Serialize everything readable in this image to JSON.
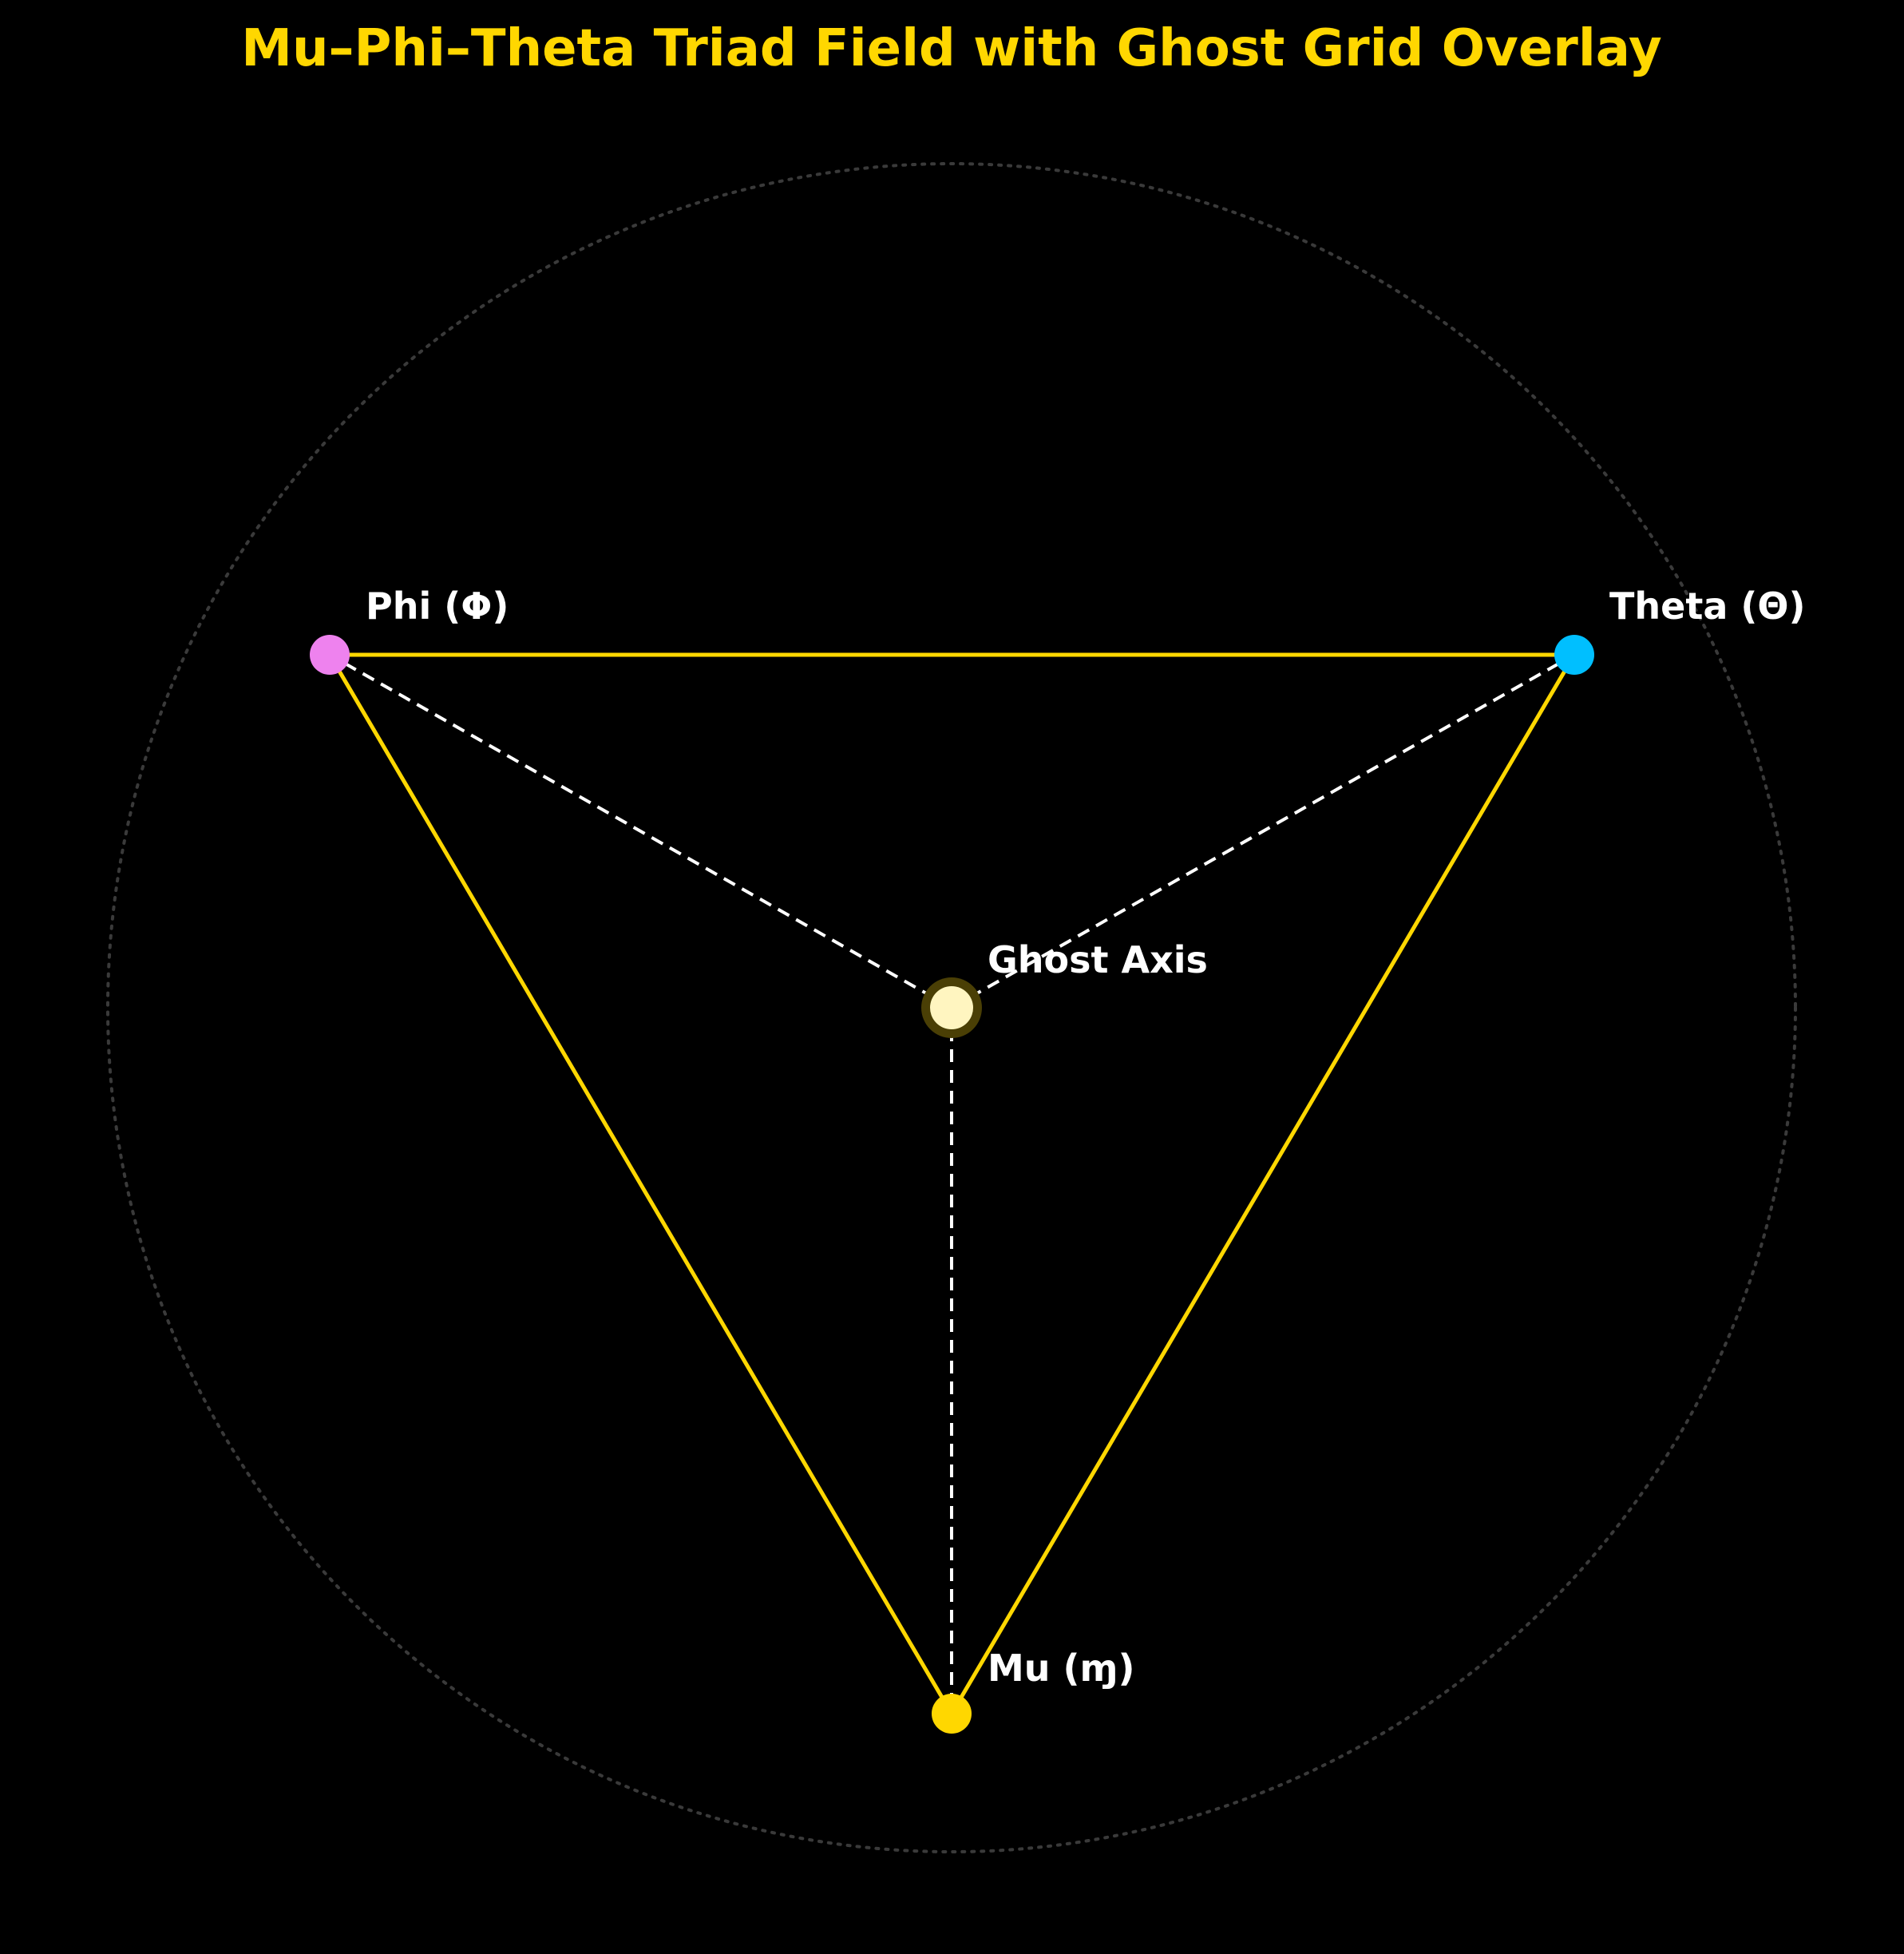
{
  "title": "Mu–Phi–Theta Triad Field with Ghost Grid Overlay",
  "colors": {
    "background": "#000000",
    "title": "#FFD700",
    "triangle_edge": "#FFD700",
    "spoke": "#FFFFFF",
    "guide_circle": "#3a3a3a",
    "label": "#FFFFFF",
    "center_halo": "#4a3f05"
  },
  "nodes": [
    {
      "id": "phi",
      "label": "Phi (Φ)",
      "color": "#EE82EE"
    },
    {
      "id": "theta",
      "label": "Theta (Θ)",
      "color": "#00BFFF"
    },
    {
      "id": "mu",
      "label": "Mu (ɱ)",
      "color": "#FFD700"
    },
    {
      "id": "ghost",
      "label": "Ghost Axis",
      "color": "#FFF5C0"
    }
  ],
  "edges": [
    {
      "from": "phi",
      "to": "theta",
      "style": "solid"
    },
    {
      "from": "theta",
      "to": "mu",
      "style": "solid"
    },
    {
      "from": "mu",
      "to": "phi",
      "style": "solid"
    },
    {
      "from": "ghost",
      "to": "phi",
      "style": "dashed"
    },
    {
      "from": "ghost",
      "to": "theta",
      "style": "dashed"
    },
    {
      "from": "ghost",
      "to": "mu",
      "style": "dashed"
    }
  ],
  "guide_circle": {
    "style": "dotted"
  }
}
